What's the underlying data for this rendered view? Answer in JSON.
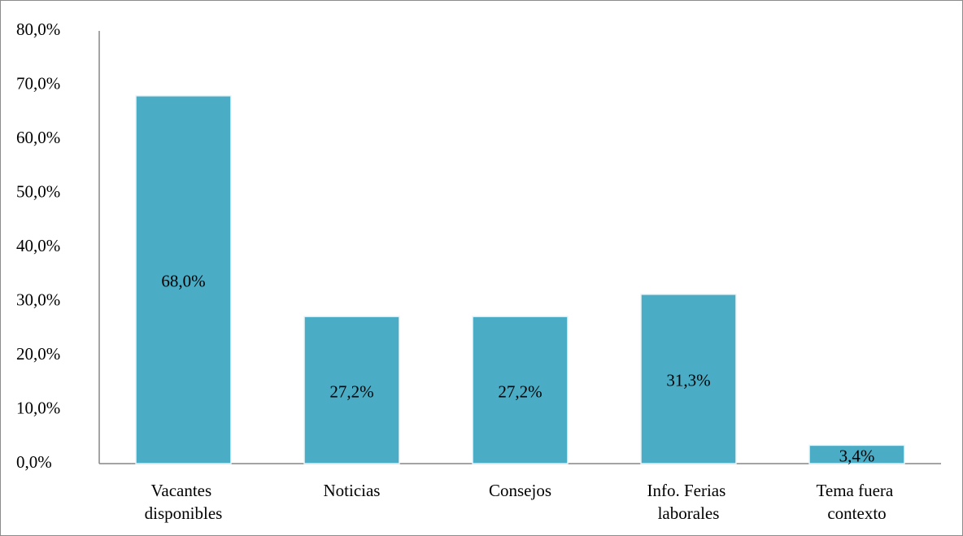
{
  "chart_data": {
    "type": "bar",
    "categories": [
      "Vacantes disponibles",
      "Noticias",
      "Consejos",
      "Info. Ferias laborales",
      "Tema fuera contexto"
    ],
    "values": [
      68.0,
      27.2,
      27.2,
      31.3,
      3.4
    ],
    "value_labels": [
      "68,0%",
      "27,2%",
      "27,2%",
      "31,3%",
      "3,4%"
    ],
    "color": "#4bacc6",
    "ylim": [
      0,
      80
    ],
    "yticks": [
      {
        "value": 0,
        "label": "0,0%"
      },
      {
        "value": 10,
        "label": "10,0%"
      },
      {
        "value": 20,
        "label": "20,0%"
      },
      {
        "value": 30,
        "label": "30,0%"
      },
      {
        "value": 40,
        "label": "40,0%"
      },
      {
        "value": 50,
        "label": "50,0%"
      },
      {
        "value": 60,
        "label": "60,0%"
      },
      {
        "value": 70,
        "label": "70,0%"
      },
      {
        "value": 80,
        "label": "80,0%"
      }
    ],
    "grid": false
  }
}
